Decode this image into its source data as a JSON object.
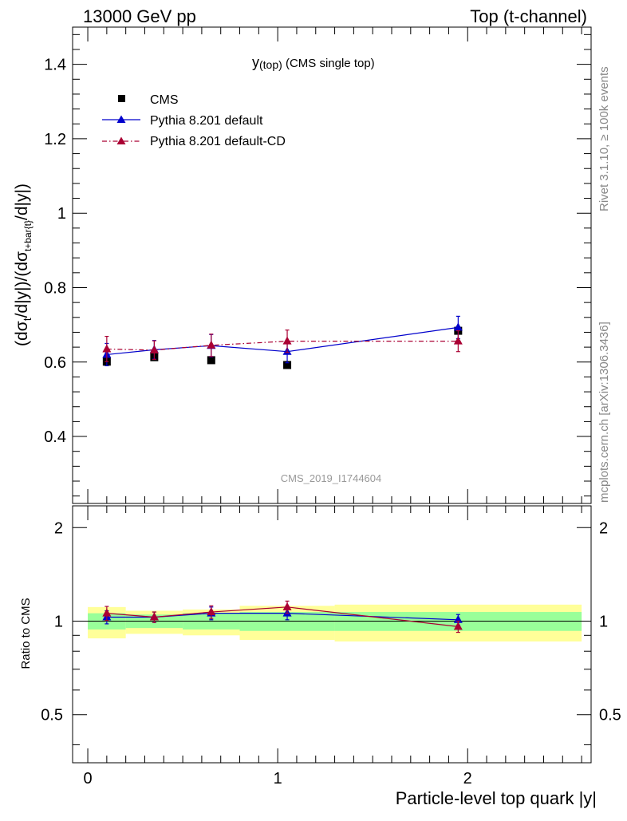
{
  "header": {
    "left": "13000 GeV pp",
    "right": "Top (t-channel)"
  },
  "side_labels": {
    "rivet": "Rivet 3.1.10, ≥ 100k events",
    "mcplots": "mcplots.cern.ch [arXiv:1306.3436]"
  },
  "watermark": "CMS_2019_I1744604",
  "colors": {
    "cms": "#000000",
    "pythia_default": "#0000cc",
    "pythia_cd": "#aa0033",
    "band_inner": "#99ff99",
    "band_outer": "#ffff99"
  },
  "chart_data": [
    {
      "type": "scatter",
      "title": "y(top) (CMS single top)",
      "title_parts": {
        "main": "y",
        "sub": "(top)",
        "rest": " (CMS single top)"
      },
      "ylabel": "(dσt/d|y|)/(dσt+bar{t}/d|y|)",
      "ylabel_parts": {
        "a": "(dσ",
        "a_sub": "t",
        "b": "/d|y|)/(dσ",
        "b_sub": "t+bar{t}",
        "c": "/d|y|)"
      },
      "xlim": [
        -0.08,
        2.65
      ],
      "ylim": [
        0.22,
        1.5
      ],
      "yticks": [
        0.4,
        0.6,
        0.8,
        1,
        1.2,
        1.4
      ],
      "ytick_labels": [
        "0.4",
        "0.6",
        "0.8",
        "1",
        "1.2",
        "1.4"
      ],
      "legend_position": "top-left",
      "series": [
        {
          "name": "CMS",
          "marker": "square",
          "x": [
            0.1,
            0.35,
            0.65,
            1.05,
            1.95
          ],
          "y": [
            0.601,
            0.613,
            0.605,
            0.592,
            0.684
          ],
          "yerr": [
            0.012,
            0.01,
            0.008,
            0.008,
            0.01
          ]
        },
        {
          "name": "Pythia 8.201 default",
          "marker": "triangle",
          "line": "solid",
          "x": [
            0.1,
            0.35,
            0.65,
            1.05,
            1.95
          ],
          "y": [
            0.62,
            0.633,
            0.644,
            0.628,
            0.693
          ],
          "yerr": [
            0.03,
            0.025,
            0.03,
            0.03,
            0.03
          ]
        },
        {
          "name": "Pythia 8.201 default-CD",
          "marker": "triangle",
          "line": "dashdot",
          "x": [
            0.1,
            0.35,
            0.65,
            1.05,
            1.95
          ],
          "y": [
            0.635,
            0.632,
            0.645,
            0.656,
            0.656
          ],
          "yerr": [
            0.034,
            0.025,
            0.03,
            0.03,
            0.028
          ]
        }
      ]
    },
    {
      "type": "scatter",
      "xlabel": "Particle-level top quark |y|",
      "ylabel": "Ratio to CMS",
      "xlim": [
        -0.08,
        2.65
      ],
      "ylim": [
        0.35,
        2.35
      ],
      "xticks": [
        0,
        1,
        2
      ],
      "xtick_labels": [
        "0",
        "1",
        "2"
      ],
      "yticks": [
        0.5,
        1,
        2
      ],
      "ytick_labels": [
        "0.5",
        "1",
        "2"
      ],
      "reference_line": 1,
      "bands": [
        {
          "x0": 0.0,
          "x1": 0.2,
          "inner": [
            0.94,
            1.06
          ],
          "outer": [
            0.88,
            1.11
          ]
        },
        {
          "x0": 0.2,
          "x1": 0.5,
          "inner": [
            0.95,
            1.05
          ],
          "outer": [
            0.91,
            1.08
          ]
        },
        {
          "x0": 0.5,
          "x1": 0.8,
          "inner": [
            0.94,
            1.06
          ],
          "outer": [
            0.9,
            1.09
          ]
        },
        {
          "x0": 0.8,
          "x1": 1.3,
          "inner": [
            0.93,
            1.07
          ],
          "outer": [
            0.87,
            1.12
          ]
        },
        {
          "x0": 1.3,
          "x1": 2.6,
          "inner": [
            0.93,
            1.07
          ],
          "outer": [
            0.86,
            1.13
          ]
        }
      ],
      "series": [
        {
          "name": "Pythia 8.201 default",
          "x": [
            0.1,
            0.35,
            0.65,
            1.05,
            1.95
          ],
          "y": [
            1.03,
            1.03,
            1.06,
            1.06,
            1.01
          ],
          "yerr": [
            0.05,
            0.04,
            0.05,
            0.05,
            0.04
          ]
        },
        {
          "name": "Pythia 8.201 default-CD",
          "x": [
            0.1,
            0.35,
            0.65,
            1.05,
            1.95
          ],
          "y": [
            1.06,
            1.03,
            1.07,
            1.11,
            0.96
          ],
          "yerr": [
            0.055,
            0.04,
            0.05,
            0.05,
            0.04
          ]
        }
      ]
    }
  ]
}
